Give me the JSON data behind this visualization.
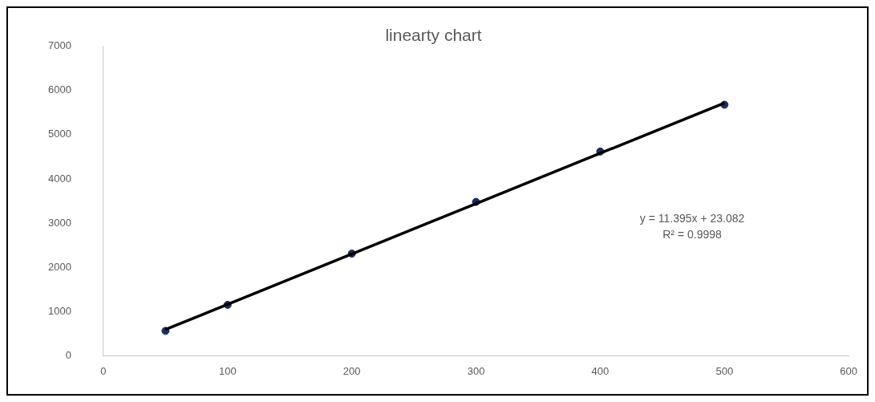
{
  "chart_data": {
    "type": "scatter",
    "title": "linearty chart",
    "x": [
      50,
      100,
      200,
      300,
      400,
      500
    ],
    "series": [
      {
        "color": "#1f2d5c",
        "marker": "circle",
        "values": [
          560,
          1150,
          2310,
          3480,
          4620,
          5680
        ]
      },
      {
        "type": "line",
        "color": "#000000",
        "x": [
          50,
          500
        ],
        "values": [
          590,
          5720
        ]
      }
    ],
    "annotations": [
      "y = 11.395x + 23.082",
      "R² = 0.9998"
    ],
    "xlim": [
      0,
      600
    ],
    "xticks": [
      0,
      100,
      200,
      300,
      400,
      500,
      600
    ],
    "ylim": [
      0,
      7000
    ],
    "yticks": [
      0,
      1000,
      2000,
      3000,
      4000,
      5000,
      6000,
      7000
    ],
    "grid": false,
    "legend": false
  }
}
